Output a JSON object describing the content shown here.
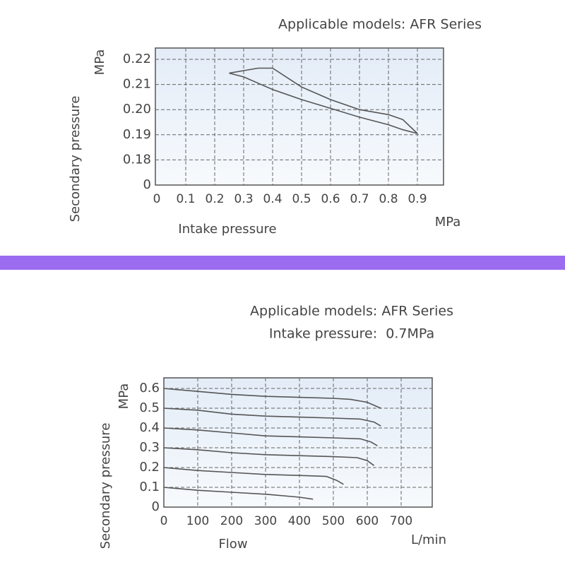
{
  "chart_data": [
    {
      "type": "line",
      "title": "Applicable models: AFR Series",
      "y_label": "Secondary pressure",
      "y_unit": "MPa",
      "x_label": "Intake pressure",
      "x_unit": "MPa",
      "x": [
        0.25,
        0.3,
        0.35,
        0.4,
        0.5,
        0.6,
        0.7,
        0.8,
        0.85,
        0.9
      ],
      "series": [
        {
          "color": "#555555",
          "values": [
            0.2145,
            0.2155,
            0.2165,
            0.2165,
            0.209,
            0.204,
            0.2,
            0.198,
            0.196,
            0.1905
          ]
        },
        {
          "color": "#555555",
          "values": [
            0.2145,
            0.213,
            0.2105,
            0.208,
            0.204,
            0.2005,
            0.197,
            0.194,
            0.192,
            0.1905
          ]
        }
      ],
      "xlim": [
        0,
        1.0
      ],
      "xticks": [
        0,
        0.1,
        0.2,
        0.3,
        0.4,
        0.5,
        0.6,
        0.7,
        0.8,
        0.9
      ],
      "ylim": [
        0,
        0.22
      ],
      "yticks": [
        0,
        0.18,
        0.19,
        {
          "value": 0.2,
          "label": "0.20"
        },
        0.21,
        0.22
      ],
      "grid": true
    },
    {
      "type": "line",
      "title": "Applicable models: AFR Series",
      "subtitle": "Intake pressure:  0.7MPa",
      "y_label": "Secondary pressure",
      "y_unit": "MPa",
      "x_label": "Flow",
      "x_unit": "L/min",
      "series": [
        {
          "color": "#555555",
          "x": [
            0,
            100,
            200,
            300,
            400,
            500,
            550,
            600,
            640
          ],
          "values": [
            0.6,
            0.585,
            0.57,
            0.56,
            0.555,
            0.55,
            0.545,
            0.53,
            0.5
          ]
        },
        {
          "color": "#555555",
          "x": [
            0,
            100,
            200,
            300,
            400,
            500,
            580,
            620,
            640
          ],
          "values": [
            0.5,
            0.49,
            0.47,
            0.46,
            0.455,
            0.45,
            0.445,
            0.43,
            0.41
          ]
        },
        {
          "color": "#555555",
          "x": [
            0,
            100,
            200,
            300,
            400,
            500,
            580,
            610,
            630
          ],
          "values": [
            0.4,
            0.39,
            0.375,
            0.36,
            0.355,
            0.35,
            0.345,
            0.33,
            0.31
          ]
        },
        {
          "color": "#555555",
          "x": [
            0,
            100,
            200,
            300,
            400,
            500,
            570,
            600,
            620
          ],
          "values": [
            0.3,
            0.29,
            0.275,
            0.265,
            0.26,
            0.255,
            0.25,
            0.235,
            0.21
          ]
        },
        {
          "color": "#555555",
          "x": [
            0,
            100,
            200,
            300,
            400,
            480,
            510,
            530
          ],
          "values": [
            0.2,
            0.185,
            0.175,
            0.165,
            0.16,
            0.155,
            0.135,
            0.115
          ]
        },
        {
          "color": "#555555",
          "x": [
            0,
            100,
            200,
            300,
            400,
            440
          ],
          "values": [
            0.1,
            0.085,
            0.075,
            0.065,
            0.05,
            0.04
          ]
        }
      ],
      "xlim": [
        0,
        800
      ],
      "xticks": [
        0,
        100,
        200,
        300,
        400,
        500,
        600,
        700
      ],
      "ylim": [
        0,
        0.65
      ],
      "yticks": [
        0,
        0.1,
        0.2,
        0.3,
        0.4,
        0.5,
        0.6
      ],
      "grid": true
    }
  ]
}
